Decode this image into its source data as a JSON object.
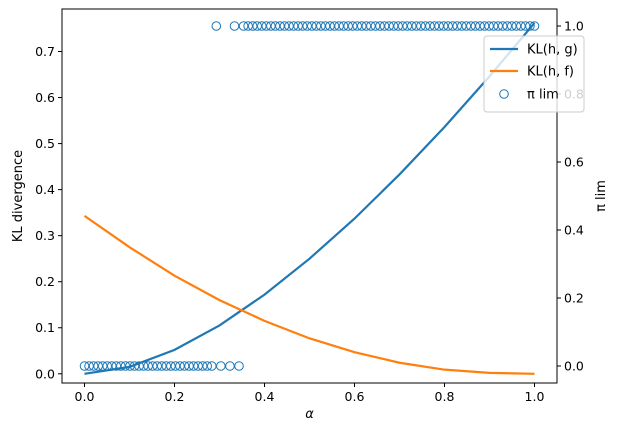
{
  "chart_data": {
    "type": "line",
    "x_axis": {
      "label": "α",
      "range": [
        -0.05,
        1.05
      ],
      "ticks": [
        0.0,
        0.2,
        0.4,
        0.6,
        0.8,
        1.0
      ],
      "tick_labels": [
        "0.0",
        "0.2",
        "0.4",
        "0.6",
        "0.8",
        "1.0"
      ]
    },
    "y_axis_left": {
      "label": "KL divergence",
      "range": [
        -0.02,
        0.7923
      ],
      "ticks": [
        0.0,
        0.1,
        0.2,
        0.3,
        0.4,
        0.5,
        0.6,
        0.7
      ],
      "tick_labels": [
        "0.0",
        "0.1",
        "0.2",
        "0.3",
        "0.4",
        "0.5",
        "0.6",
        "0.7"
      ]
    },
    "y_axis_right": {
      "label": "π lim",
      "range": [
        -0.05,
        1.05
      ],
      "ticks": [
        0.0,
        0.2,
        0.4,
        0.6,
        0.8,
        1.0
      ],
      "tick_labels": [
        "0.0",
        "0.2",
        "0.4",
        "0.6",
        "0.8",
        "1.0"
      ]
    },
    "grid": false,
    "legend_position": "upper-right",
    "series": [
      {
        "name": "KL(h, g)",
        "kind": "line",
        "axis": "left",
        "color": "#1f77b4",
        "x": [
          0,
          0.1,
          0.2,
          0.3,
          0.4,
          0.5,
          0.6,
          0.7,
          0.8,
          0.9,
          1.0
        ],
        "y": [
          0,
          0.015,
          0.052,
          0.105,
          0.172,
          0.25,
          0.337,
          0.433,
          0.536,
          0.646,
          0.762
        ]
      },
      {
        "name": "KL(h, f)",
        "kind": "line",
        "axis": "left",
        "color": "#ff7f0e",
        "x": [
          0,
          0.1,
          0.2,
          0.3,
          0.4,
          0.5,
          0.6,
          0.7,
          0.8,
          0.9,
          1.0
        ],
        "y": [
          0.343,
          0.275,
          0.213,
          0.16,
          0.115,
          0.077,
          0.047,
          0.024,
          0.009,
          0.002,
          0.0
        ]
      },
      {
        "name": "π lim",
        "legend_label": "π lim",
        "kind": "scatter",
        "axis": "right",
        "color": "#1f77b4",
        "marker": "open-circle",
        "x": [
          0,
          0.0101,
          0.0202,
          0.0303,
          0.0404,
          0.0505,
          0.0606,
          0.0707,
          0.0808,
          0.0909,
          0.101,
          0.1111,
          0.1212,
          0.1313,
          0.1414,
          0.1515,
          0.1616,
          0.1717,
          0.1818,
          0.1919,
          0.202,
          0.2121,
          0.2222,
          0.2323,
          0.2424,
          0.2525,
          0.2626,
          0.2727,
          0.2828,
          0.2929,
          0.303,
          0.3232,
          0.3333,
          0.3434,
          0.3535,
          0.3636,
          0.3737,
          0.3838,
          0.3939,
          0.404,
          0.4141,
          0.4242,
          0.4343,
          0.4444,
          0.4545,
          0.4646,
          0.4747,
          0.4848,
          0.4949,
          0.5051,
          0.5152,
          0.5253,
          0.5354,
          0.5455,
          0.5556,
          0.5657,
          0.5758,
          0.5859,
          0.596,
          0.6061,
          0.6162,
          0.6263,
          0.6364,
          0.6465,
          0.6566,
          0.6667,
          0.6768,
          0.6869,
          0.697,
          0.7071,
          0.7172,
          0.7273,
          0.7374,
          0.7475,
          0.7576,
          0.7677,
          0.7778,
          0.7879,
          0.798,
          0.8081,
          0.8182,
          0.8283,
          0.8384,
          0.8485,
          0.8586,
          0.8687,
          0.8788,
          0.8889,
          0.899,
          0.9091,
          0.9192,
          0.9293,
          0.9394,
          0.9495,
          0.9596,
          0.9697,
          0.9798,
          0.9899,
          1.0
        ],
        "y": [
          0,
          0,
          0,
          0,
          0,
          0,
          0,
          0,
          0,
          0,
          0,
          0,
          0,
          0,
          0,
          0,
          0,
          0,
          0,
          0,
          0,
          0,
          0,
          0,
          0,
          0,
          0,
          0,
          0,
          1,
          0,
          0,
          1,
          0,
          1,
          1,
          1,
          1,
          1,
          1,
          1,
          1,
          1,
          1,
          1,
          1,
          1,
          1,
          1,
          1,
          1,
          1,
          1,
          1,
          1,
          1,
          1,
          1,
          1,
          1,
          1,
          1,
          1,
          1,
          1,
          1,
          1,
          1,
          1,
          1,
          1,
          1,
          1,
          1,
          1,
          1,
          1,
          1,
          1,
          1,
          1,
          1,
          1,
          1,
          1,
          1,
          1,
          1,
          1,
          1,
          1,
          1,
          1,
          1,
          1,
          1,
          1,
          1,
          1
        ]
      }
    ]
  }
}
